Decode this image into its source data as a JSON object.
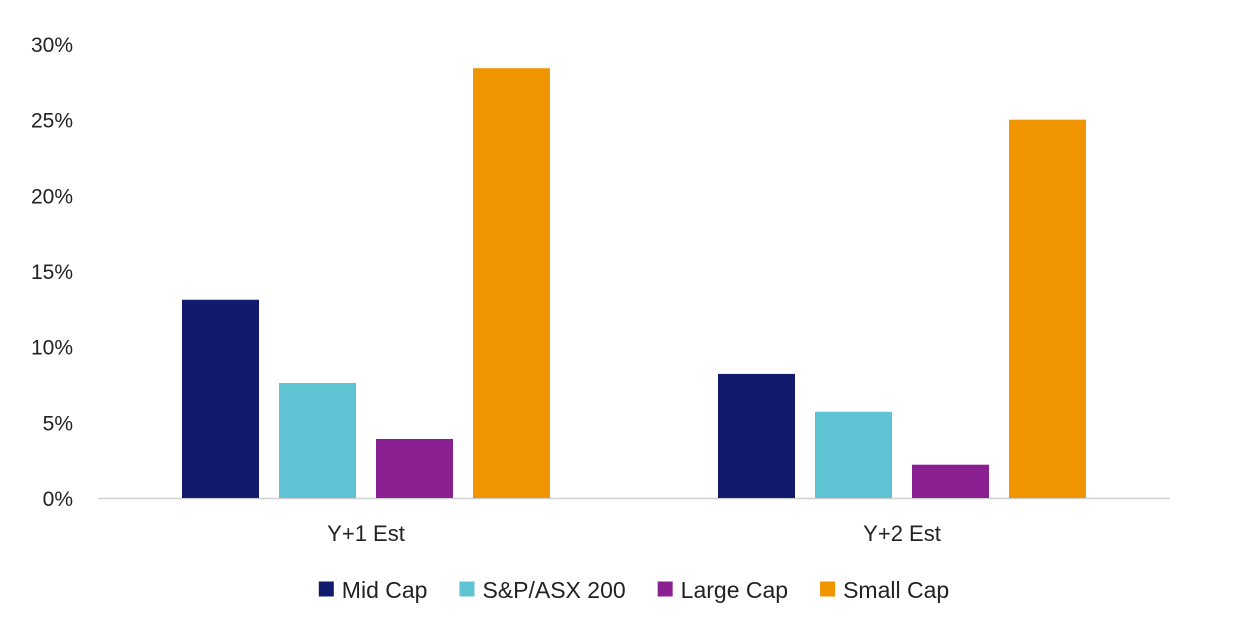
{
  "chart_data": {
    "type": "bar",
    "categories": [
      "Y+1 Est",
      "Y+2 Est"
    ],
    "series": [
      {
        "name": "Mid Cap",
        "color": "#121a6e",
        "values": [
          13.1,
          8.2
        ]
      },
      {
        "name": "S&P/ASX 200",
        "color": "#5ec3d2",
        "values": [
          7.6,
          5.7
        ]
      },
      {
        "name": "Large Cap",
        "color": "#8b2092",
        "values": [
          3.9,
          2.2
        ]
      },
      {
        "name": "Small Cap",
        "color": "#f09400",
        "values": [
          28.4,
          25.0
        ]
      }
    ],
    "yticks": [
      "0%",
      "5%",
      "10%",
      "15%",
      "20%",
      "25%",
      "30%"
    ],
    "ylim": [
      0,
      30
    ],
    "title": "",
    "xlabel": "",
    "ylabel": "",
    "grid": false,
    "legend_position": "bottom"
  }
}
